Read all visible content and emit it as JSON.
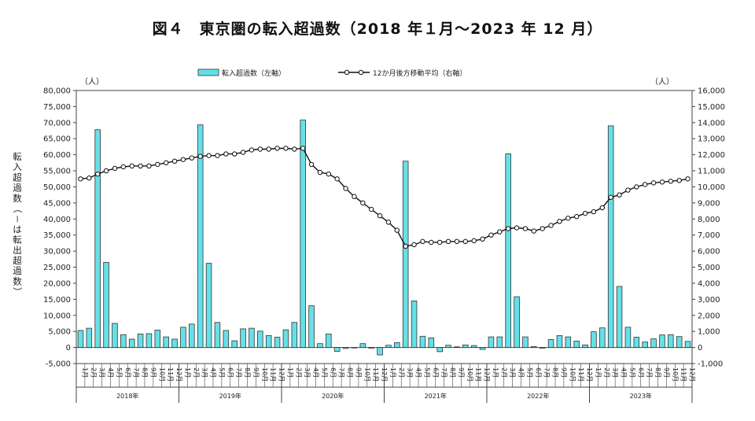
{
  "chart_data": {
    "type": "bar",
    "title": "図４　東京圏の転入超過数（2018 年１月～2023 年 12 月）",
    "left_unit": "（人）",
    "right_unit": "（人）",
    "ylabel": "転入超過数（－は転出超過数）",
    "ylim_left": [
      -5000,
      80000
    ],
    "ylim_right": [
      -1000,
      16000
    ],
    "yticks_left": [
      "-5,000",
      "0",
      "5,000",
      "10,000",
      "15,000",
      "20,000",
      "25,000",
      "30,000",
      "35,000",
      "40,000",
      "45,000",
      "50,000",
      "55,000",
      "60,000",
      "65,000",
      "70,000",
      "75,000",
      "80,000"
    ],
    "yticks_right": [
      "-1,000",
      "0",
      "1,000",
      "2,000",
      "3,000",
      "4,000",
      "5,000",
      "6,000",
      "7,000",
      "8,000",
      "9,000",
      "10,000",
      "11,000",
      "12,000",
      "13,000",
      "14,000",
      "15,000",
      "16,000"
    ],
    "month_labels": [
      "1月",
      "2月",
      "3月",
      "4月",
      "5月",
      "6月",
      "7月",
      "8月",
      "9月",
      "10月",
      "11月",
      "12月"
    ],
    "years": [
      "2018年",
      "2019年",
      "2020年",
      "2021年",
      "2022年",
      "2023年"
    ],
    "legend": {
      "bar": "転入超過数（左軸）",
      "line": "12か月後方移動平均（右軸）"
    },
    "colors": {
      "bar_fill": "#66e0e8",
      "bar_stroke": "#333333",
      "line": "#111111",
      "marker_fill": "#ffffff"
    },
    "series": [
      {
        "name": "転入超過数（左軸）",
        "axis": "left",
        "values": [
          5300,
          6000,
          67800,
          26500,
          7500,
          4000,
          2600,
          4200,
          4300,
          5400,
          3300,
          2600,
          6300,
          7300,
          69300,
          26200,
          7800,
          5300,
          2100,
          5800,
          6000,
          5100,
          3700,
          3200,
          5500,
          7800,
          70800,
          13000,
          1200,
          4200,
          -1200,
          -300,
          0,
          1200,
          -200,
          -2300,
          700,
          1500,
          58000,
          14500,
          3500,
          3000,
          -1300,
          700,
          200,
          800,
          600,
          -600,
          3300,
          3300,
          60300,
          15800,
          3300,
          300,
          -200,
          2500,
          3700,
          3300,
          2000,
          800,
          4900,
          6100,
          69000,
          19000,
          6300,
          3200,
          1700,
          2700,
          3900,
          4000,
          3400,
          1900
        ]
      },
      {
        "name": "12か月後方移動平均（右軸）",
        "axis": "right",
        "values": [
          10500,
          10550,
          10800,
          11000,
          11150,
          11250,
          11300,
          11300,
          11300,
          11400,
          11500,
          11600,
          11700,
          11800,
          11900,
          11950,
          11950,
          12050,
          12050,
          12150,
          12300,
          12350,
          12350,
          12400,
          12400,
          12350,
          12400,
          11400,
          10900,
          10800,
          10500,
          9900,
          9400,
          9000,
          8600,
          8200,
          7800,
          7300,
          6300,
          6400,
          6600,
          6550,
          6550,
          6600,
          6600,
          6600,
          6650,
          6750,
          7000,
          7200,
          7400,
          7450,
          7400,
          7250,
          7400,
          7600,
          7850,
          8050,
          8150,
          8350,
          8450,
          8700,
          9350,
          9500,
          9800,
          10000,
          10150,
          10250,
          10300,
          10350,
          10400,
          10500
        ]
      }
    ]
  }
}
